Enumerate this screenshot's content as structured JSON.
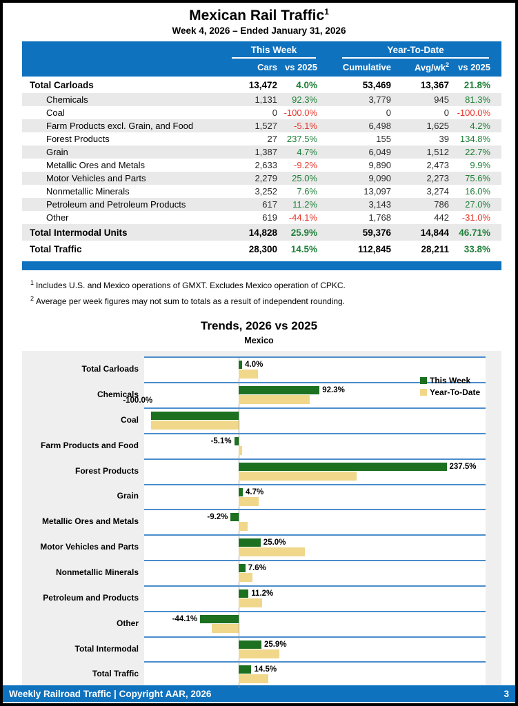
{
  "header": {
    "title": "Mexican Rail Traffic",
    "title_sup": "1",
    "subtitle": "Week 4, 2026 – Ended January 31, 2026"
  },
  "colors": {
    "accent_blue": "#0F72BE",
    "positive_green": "#1F8038",
    "negative_red": "#E8352B",
    "row_shade_gray": "#E9E9E9",
    "chart_gridline_blue": "#4A8CCC",
    "chart_panel_gray": "#EFEFEF"
  },
  "table": {
    "group_this_week": "This Week",
    "group_ytd": "Year-To-Date",
    "col_cars": "Cars",
    "col_vs_tw": "vs 2025",
    "col_cumulative": "Cumulative",
    "col_avg": "Avg/wk",
    "col_avg_sup": "2",
    "col_vs_ytd": "vs 2025",
    "rows": [
      {
        "label": "Total Carloads",
        "bold": true,
        "shade": false,
        "cars": "13,472",
        "tw_vs": "4.0%",
        "cum": "53,469",
        "avg": "13,367",
        "ytd_vs": "21.8%"
      },
      {
        "label": "Chemicals",
        "bold": false,
        "shade": true,
        "cars": "1,131",
        "tw_vs": "92.3%",
        "cum": "3,779",
        "avg": "945",
        "ytd_vs": "81.3%"
      },
      {
        "label": "Coal",
        "bold": false,
        "shade": false,
        "cars": "0",
        "tw_vs": "-100.0%",
        "cum": "0",
        "avg": "0",
        "ytd_vs": "-100.0%"
      },
      {
        "label": "Farm Products excl. Grain, and Food",
        "bold": false,
        "shade": true,
        "cars": "1,527",
        "tw_vs": "-5.1%",
        "cum": "6,498",
        "avg": "1,625",
        "ytd_vs": "4.2%"
      },
      {
        "label": "Forest Products",
        "bold": false,
        "shade": false,
        "cars": "27",
        "tw_vs": "237.5%",
        "cum": "155",
        "avg": "39",
        "ytd_vs": "134.8%"
      },
      {
        "label": "Grain",
        "bold": false,
        "shade": true,
        "cars": "1,387",
        "tw_vs": "4.7%",
        "cum": "6,049",
        "avg": "1,512",
        "ytd_vs": "22.7%"
      },
      {
        "label": "Metallic Ores and Metals",
        "bold": false,
        "shade": false,
        "cars": "2,633",
        "tw_vs": "-9.2%",
        "cum": "9,890",
        "avg": "2,473",
        "ytd_vs": "9.9%"
      },
      {
        "label": "Motor Vehicles and Parts",
        "bold": false,
        "shade": true,
        "cars": "2,279",
        "tw_vs": "25.0%",
        "cum": "9,090",
        "avg": "2,273",
        "ytd_vs": "75.6%"
      },
      {
        "label": "Nonmetallic Minerals",
        "bold": false,
        "shade": false,
        "cars": "3,252",
        "tw_vs": "7.6%",
        "cum": "13,097",
        "avg": "3,274",
        "ytd_vs": "16.0%"
      },
      {
        "label": "Petroleum and Petroleum Products",
        "bold": false,
        "shade": true,
        "cars": "617",
        "tw_vs": "11.2%",
        "cum": "3,143",
        "avg": "786",
        "ytd_vs": "27.0%"
      },
      {
        "label": "Other",
        "bold": false,
        "shade": false,
        "cars": "619",
        "tw_vs": "-44.1%",
        "cum": "1,768",
        "avg": "442",
        "ytd_vs": "-31.0%"
      },
      {
        "label": "Total Intermodal Units",
        "bold": true,
        "shade": true,
        "cars": "14,828",
        "tw_vs": "25.9%",
        "cum": "59,376",
        "avg": "14,844",
        "ytd_vs": "46.71%"
      },
      {
        "label": "Total Traffic",
        "bold": true,
        "shade": false,
        "cars": "28,300",
        "tw_vs": "14.5%",
        "cum": "112,845",
        "avg": "28,211",
        "ytd_vs": "33.8%"
      }
    ]
  },
  "footnotes": [
    {
      "sup": "1",
      "text": "Includes U.S. and Mexico operations of GMXT. Excludes Mexico operation of CPKC."
    },
    {
      "sup": "2",
      "text": "Average per week figures may not sum to totals as a result of independent rounding."
    }
  ],
  "chart_data": {
    "type": "bar",
    "orientation": "horizontal",
    "title": "Trends, 2026 vs 2025",
    "subtitle": "Mexico",
    "categories": [
      "Total Carloads",
      "Chemicals",
      "Coal",
      "Farm Products and Food",
      "Forest Products",
      "Grain",
      "Metallic Ores and Metals",
      "Motor Vehicles and Parts",
      "Nonmetallic Minerals",
      "Petroleum and Products",
      "Other",
      "Total Intermodal",
      "Total Traffic"
    ],
    "series": [
      {
        "name": "This Week",
        "color": "#1C7020",
        "values": [
          4.0,
          92.3,
          -100.0,
          -5.1,
          237.5,
          4.7,
          -9.2,
          25.0,
          7.6,
          11.2,
          -44.1,
          25.9,
          14.5
        ]
      },
      {
        "name": "Year-To-Date",
        "color": "#F0D78A",
        "values": [
          21.8,
          81.3,
          -100.0,
          4.2,
          134.8,
          22.7,
          9.9,
          75.6,
          16.0,
          27.0,
          -31.0,
          46.7,
          33.8
        ]
      }
    ],
    "bar_labels": [
      "4.0%",
      "92.3%",
      "-100.0%",
      "-5.1%",
      "237.5%",
      "4.7%",
      "-9.2%",
      "25.0%",
      "7.6%",
      "11.2%",
      "-44.1%",
      "25.9%",
      "14.5%"
    ],
    "label_side": [
      "right",
      "right",
      "above-left",
      "left",
      "right",
      "right",
      "left",
      "right",
      "right",
      "right",
      "left",
      "right",
      "right"
    ],
    "x_ticks": [
      "-110%",
      "-60%",
      "-10%",
      "40%",
      "90%",
      "140%",
      "190%",
      "240%"
    ],
    "x_tick_values": [
      -110,
      -60,
      -10,
      40,
      90,
      140,
      190,
      240
    ],
    "xlim": [
      -108,
      282
    ],
    "legend_position": "top-right",
    "grid": "horizontal-blue-lines",
    "xlabel": "",
    "ylabel": ""
  },
  "footer": {
    "left": "Weekly Railroad Traffic | Copyright AAR, 2026",
    "page": "3"
  }
}
